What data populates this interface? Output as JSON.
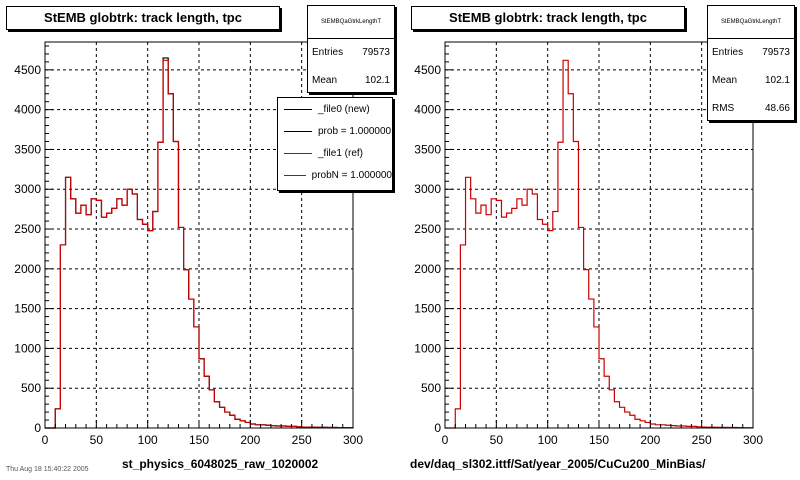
{
  "panels": [
    {
      "title": "StEMB globtrk: track length, tpc",
      "xcaption": "st_physics_6048025_raw_1020002",
      "stats": {
        "name": "StEMBQaGtrkLengthT",
        "rows": [
          {
            "label": "Entries",
            "value": "79573"
          },
          {
            "label": "Mean",
            "value": "102.1"
          }
        ]
      },
      "legend": [
        {
          "label": "_file0 (new)",
          "color": "#000000"
        },
        {
          "label": "prob = 1.000000",
          "color": "#000000"
        },
        {
          "label": "_file1 (ref)",
          "color": "#cc0000"
        },
        {
          "label": "probN = 1.000000",
          "color": "#cc0000"
        }
      ]
    },
    {
      "title": "StEMB globtrk: track length, tpc",
      "xcaption": "dev/daq_sl302.ittf/Sat/year_2005/CuCu200_MinBias/",
      "stats": {
        "name": "StEMBQaGtrkLengthT",
        "rows": [
          {
            "label": "Entries",
            "value": "79573"
          },
          {
            "label": "Mean",
            "value": "102.1"
          },
          {
            "label": "RMS",
            "value": "48.66"
          }
        ]
      }
    }
  ],
  "footer": "Thu Aug 18 15:40:22 2005",
  "chart_data": [
    {
      "type": "histogram",
      "title": "StEMB globtrk: track length, tpc",
      "xlim": [
        0,
        300
      ],
      "ylim": [
        0,
        4850
      ],
      "xticks": [
        0,
        50,
        100,
        150,
        200,
        250,
        300
      ],
      "yticks": [
        0,
        500,
        1000,
        1500,
        2000,
        2500,
        3000,
        3500,
        4000,
        4500
      ],
      "grid": true,
      "bin_width": 5,
      "series": [
        {
          "name": "_file0 (new)",
          "color": "#000000",
          "values": [
            0,
            0,
            240,
            2300,
            3150,
            2880,
            2700,
            2800,
            2680,
            2880,
            2860,
            2650,
            2700,
            2760,
            2880,
            2800,
            3000,
            2940,
            2620,
            2560,
            2480,
            2720,
            3590,
            4650,
            4200,
            3600,
            2520,
            1990,
            1620,
            1270,
            870,
            650,
            480,
            330,
            260,
            200,
            160,
            110,
            90,
            70,
            50,
            40,
            40,
            35,
            30,
            25,
            25,
            20,
            20,
            15,
            12,
            10,
            10,
            8,
            8,
            6,
            6,
            5,
            4,
            3
          ]
        },
        {
          "name": "_file1 (ref)",
          "color": "#cc0000",
          "values": [
            0,
            0,
            240,
            2300,
            3150,
            2880,
            2700,
            2800,
            2680,
            2880,
            2860,
            2650,
            2700,
            2760,
            2880,
            2800,
            3000,
            2940,
            2620,
            2560,
            2480,
            2720,
            3590,
            4620,
            4200,
            3600,
            2520,
            1990,
            1620,
            1270,
            870,
            650,
            480,
            330,
            260,
            200,
            160,
            110,
            90,
            70,
            50,
            40,
            40,
            35,
            30,
            25,
            25,
            20,
            20,
            15,
            12,
            10,
            10,
            8,
            8,
            6,
            6,
            5,
            4,
            3
          ]
        }
      ]
    },
    {
      "type": "histogram",
      "title": "StEMB globtrk: track length, tpc",
      "xlim": [
        0,
        300
      ],
      "ylim": [
        0,
        4850
      ],
      "xticks": [
        0,
        50,
        100,
        150,
        200,
        250,
        300
      ],
      "yticks": [
        0,
        500,
        1000,
        1500,
        2000,
        2500,
        3000,
        3500,
        4000,
        4500
      ],
      "grid": true,
      "bin_width": 5,
      "series": [
        {
          "name": "_file1 (ref)",
          "color": "#cc0000",
          "values": [
            0,
            0,
            240,
            2300,
            3150,
            2880,
            2700,
            2800,
            2680,
            2880,
            2860,
            2650,
            2700,
            2760,
            2880,
            2800,
            3000,
            2940,
            2620,
            2560,
            2480,
            2720,
            3590,
            4620,
            4200,
            3600,
            2520,
            1990,
            1620,
            1270,
            870,
            650,
            480,
            330,
            260,
            200,
            160,
            110,
            90,
            70,
            50,
            40,
            40,
            35,
            30,
            25,
            25,
            20,
            20,
            15,
            12,
            10,
            10,
            8,
            8,
            6,
            6,
            5,
            4,
            3
          ]
        }
      ]
    }
  ]
}
